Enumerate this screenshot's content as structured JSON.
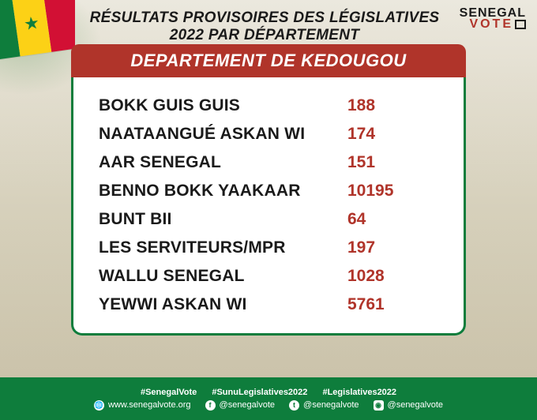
{
  "header": {
    "title": "RÉSULTATS PROVISOIRES DES LÉGISLATIVES 2022 PAR DÉPARTEMENT"
  },
  "logo": {
    "line1": "SENEGAL",
    "line2": "VOTE"
  },
  "department": {
    "label": "DEPARTEMENT DE KEDOUGOU"
  },
  "results": [
    {
      "party": "BOKK GUIS GUIS",
      "votes": "188"
    },
    {
      "party": "NAATAANGUÉ ASKAN WI",
      "votes": "174"
    },
    {
      "party": "AAR SENEGAL",
      "votes": "151"
    },
    {
      "party": "BENNO BOKK YAAKAAR",
      "votes": "10195"
    },
    {
      "party": "BUNT BII",
      "votes": "64"
    },
    {
      "party": "LES SERVITEURS/MPR",
      "votes": "197"
    },
    {
      "party": "WALLU SENEGAL",
      "votes": "1028"
    },
    {
      "party": "YEWWI ASKAN WI",
      "votes": "5761"
    }
  ],
  "footer": {
    "hashtags": [
      "#SenegalVote",
      "#SunuLegislatives2022",
      "#Legislatives2022"
    ],
    "socials": {
      "web": "www.senegalvote.org",
      "facebook": "@senegalvote",
      "twitter": "@senegalvote",
      "instagram": "@senegalvote"
    }
  },
  "colors": {
    "accent_red": "#b0342a",
    "accent_green": "#0e7d3c",
    "panel_bg": "#ffffff",
    "text_dark": "#1a1a1a"
  }
}
